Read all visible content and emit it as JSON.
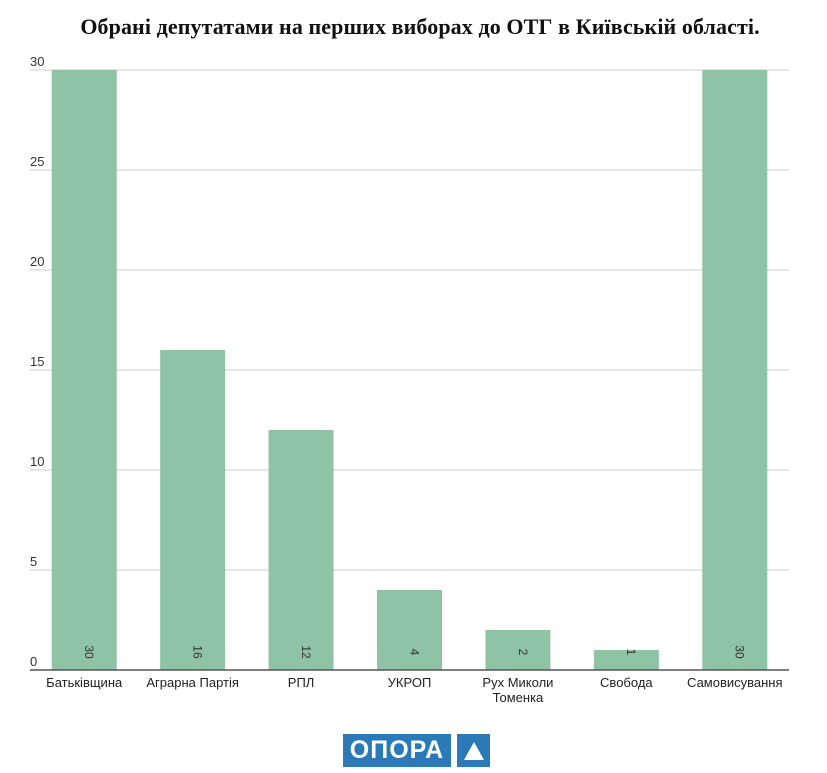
{
  "chart_data": {
    "type": "bar",
    "title": "Обрані депутатами на перших виборах до ОТГ в Київській області.",
    "categories": [
      "Батьківщина",
      "Аграрна Партія",
      "РПЛ",
      "УКРОП",
      "Рух Миколи Томенка",
      "Свобода",
      "Самовисування"
    ],
    "category_lines": [
      [
        "Батьківщина"
      ],
      [
        "Аграрна Партія"
      ],
      [
        "РПЛ"
      ],
      [
        "УКРОП"
      ],
      [
        "Рух Миколи",
        "Томенка"
      ],
      [
        "Свобода"
      ],
      [
        "Самовисування"
      ]
    ],
    "values": [
      30,
      16,
      12,
      4,
      2,
      1,
      30
    ],
    "ylim": [
      0,
      30
    ],
    "yticks": [
      0,
      5,
      10,
      15,
      20,
      25,
      30
    ],
    "xlabel": "",
    "ylabel": "",
    "grid": true,
    "legend": "none",
    "colors": {
      "bar": "#8fc3a5",
      "grid": "#cccccc",
      "axis": "#555555"
    }
  },
  "logo": {
    "text": "ОПОРА",
    "color": "#2a7ab8"
  }
}
